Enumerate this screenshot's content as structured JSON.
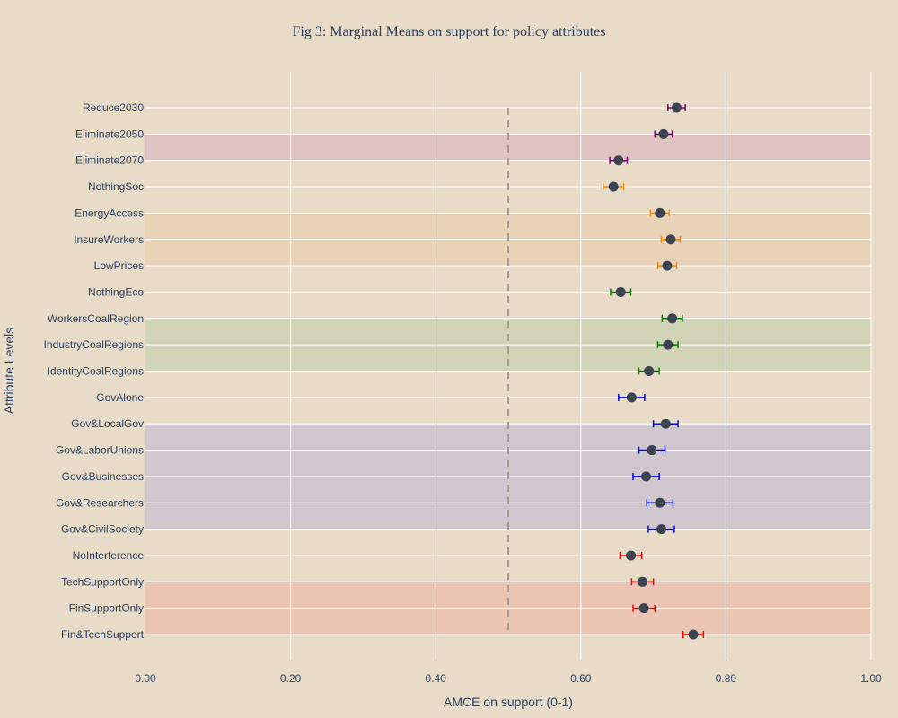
{
  "chart_data": {
    "type": "scatter",
    "title": "Fig 3: Marginal Means on support for policy attributes",
    "xlabel": "AMCE on support (0-1)",
    "ylabel": "Attribute Levels",
    "xlim": [
      0,
      1
    ],
    "x_ticks": [
      "0.00",
      "0.20",
      "0.40",
      "0.60",
      "0.80",
      "1.00"
    ],
    "x_tick_values": [
      0,
      0.2,
      0.4,
      0.6,
      0.8,
      1.0
    ],
    "reference_line_x": 0.5,
    "grid": true,
    "legend": "none",
    "groups": [
      {
        "color": "#800080",
        "band_color": "#dfc4c2",
        "band_from": "Eliminate2050",
        "band_to": "Eliminate2070"
      },
      {
        "color": "#ff8c00",
        "band_color": "#e9d3b8",
        "band_from": "EnergyAccess",
        "band_to": "LowPrices"
      },
      {
        "color": "#008000",
        "band_color": "#d0d3b6",
        "band_from": "WorkersCoalRegion",
        "band_to": "IdentityCoalRegions"
      },
      {
        "color": "#0000ff",
        "band_color": "#d0c6cd",
        "band_from": "Gov&LocalGov",
        "band_to": "Gov&CivilSociety"
      },
      {
        "color": "#ff0000",
        "band_color": "#ebc4b3",
        "band_from": "TechSupportOnly",
        "band_to": "Fin&TechSupport"
      }
    ],
    "points": [
      {
        "label": "Reduce2030",
        "group": 0,
        "x": 0.732,
        "lo": 0.72,
        "hi": 0.744
      },
      {
        "label": "Eliminate2050",
        "group": 0,
        "x": 0.714,
        "lo": 0.702,
        "hi": 0.726
      },
      {
        "label": "Eliminate2070",
        "group": 0,
        "x": 0.652,
        "lo": 0.64,
        "hi": 0.664
      },
      {
        "label": "NothingSoc",
        "group": 1,
        "x": 0.645,
        "lo": 0.631,
        "hi": 0.659
      },
      {
        "label": "EnergyAccess",
        "group": 1,
        "x": 0.709,
        "lo": 0.696,
        "hi": 0.722
      },
      {
        "label": "InsureWorkers",
        "group": 1,
        "x": 0.724,
        "lo": 0.711,
        "hi": 0.737
      },
      {
        "label": "LowPrices",
        "group": 1,
        "x": 0.719,
        "lo": 0.706,
        "hi": 0.732
      },
      {
        "label": "NothingEco",
        "group": 2,
        "x": 0.655,
        "lo": 0.641,
        "hi": 0.669
      },
      {
        "label": "WorkersCoalRegion",
        "group": 2,
        "x": 0.726,
        "lo": 0.712,
        "hi": 0.74
      },
      {
        "label": "IndustryCoalRegions",
        "group": 2,
        "x": 0.72,
        "lo": 0.706,
        "hi": 0.734
      },
      {
        "label": "IdentityCoalRegions",
        "group": 2,
        "x": 0.694,
        "lo": 0.68,
        "hi": 0.708
      },
      {
        "label": "GovAlone",
        "group": 3,
        "x": 0.67,
        "lo": 0.652,
        "hi": 0.688
      },
      {
        "label": "Gov&LocalGov",
        "group": 3,
        "x": 0.717,
        "lo": 0.7,
        "hi": 0.734
      },
      {
        "label": "Gov&LaborUnions",
        "group": 3,
        "x": 0.698,
        "lo": 0.68,
        "hi": 0.716
      },
      {
        "label": "Gov&Businesses",
        "group": 3,
        "x": 0.69,
        "lo": 0.672,
        "hi": 0.708
      },
      {
        "label": "Gov&Researchers",
        "group": 3,
        "x": 0.709,
        "lo": 0.691,
        "hi": 0.727
      },
      {
        "label": "Gov&CivilSociety",
        "group": 3,
        "x": 0.711,
        "lo": 0.693,
        "hi": 0.729
      },
      {
        "label": "NoInterference",
        "group": 4,
        "x": 0.669,
        "lo": 0.654,
        "hi": 0.684
      },
      {
        "label": "TechSupportOnly",
        "group": 4,
        "x": 0.685,
        "lo": 0.67,
        "hi": 0.7
      },
      {
        "label": "FinSupportOnly",
        "group": 4,
        "x": 0.687,
        "lo": 0.672,
        "hi": 0.702
      },
      {
        "label": "Fin&TechSupport",
        "group": 4,
        "x": 0.755,
        "lo": 0.741,
        "hi": 0.769
      }
    ],
    "marker_color": "#3b4450"
  }
}
